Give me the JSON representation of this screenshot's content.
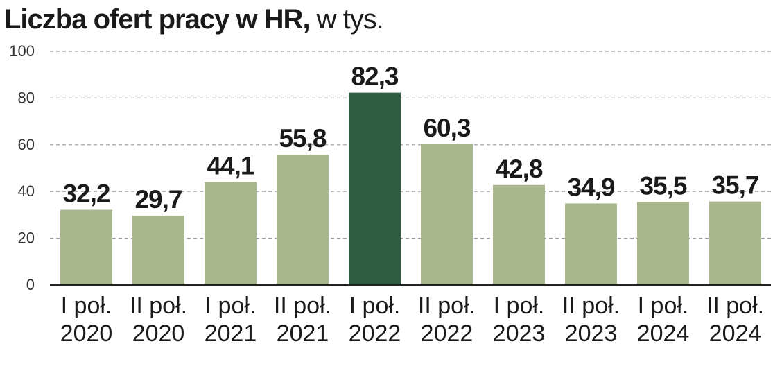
{
  "title": {
    "main": "Liczba ofert pracy w HR,",
    "unit": " w tys."
  },
  "colors": {
    "bar": "#a9b78f",
    "highlight": "#2e5b42",
    "grid": "#9a9a9a",
    "axis": "#222222",
    "text": "#1a1a1a"
  },
  "chart_data": {
    "type": "bar",
    "title": "Liczba ofert pracy w HR, w tys.",
    "categories": [
      [
        "I poł.",
        "2020"
      ],
      [
        "II poł.",
        "2020"
      ],
      [
        "I poł.",
        "2021"
      ],
      [
        "II poł.",
        "2021"
      ],
      [
        "I poł.",
        "2022"
      ],
      [
        "II poł.",
        "2022"
      ],
      [
        "I poł.",
        "2023"
      ],
      [
        "II poł.",
        "2023"
      ],
      [
        "I poł.",
        "2024"
      ],
      [
        "II poł.",
        "2024"
      ]
    ],
    "values": [
      32.2,
      29.7,
      44.1,
      55.8,
      82.3,
      60.3,
      42.8,
      34.9,
      35.5,
      35.7
    ],
    "value_labels": [
      "32,2",
      "29,7",
      "44,1",
      "55,8",
      "82,3",
      "60,3",
      "42,8",
      "34,9",
      "35,5",
      "35,7"
    ],
    "highlight_index": 4,
    "ylim": [
      0,
      100
    ],
    "yticks": [
      0,
      20,
      40,
      60,
      80,
      100
    ],
    "grid": true,
    "xlabel": "",
    "ylabel": ""
  }
}
